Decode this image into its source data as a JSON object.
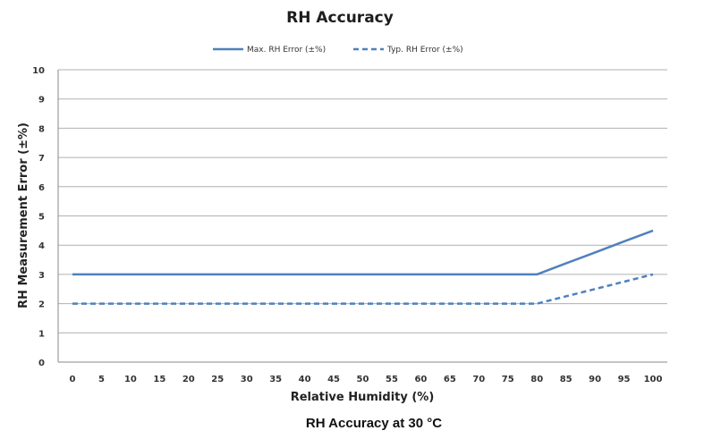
{
  "chart_data": {
    "type": "line",
    "title": "RH Accuracy",
    "xlabel": "Relative Humidity (%)",
    "ylabel": "RH Measurement Error (±%)",
    "caption": "RH Accuracy at 30 °C",
    "x": [
      0,
      5,
      10,
      15,
      20,
      25,
      30,
      35,
      40,
      45,
      50,
      55,
      60,
      65,
      70,
      75,
      80,
      85,
      90,
      95,
      100
    ],
    "xticks": [
      "0",
      "5",
      "10",
      "15",
      "20",
      "25",
      "30",
      "35",
      "40",
      "45",
      "50",
      "55",
      "60",
      "65",
      "70",
      "75",
      "80",
      "85",
      "90",
      "95",
      "100"
    ],
    "yticks": [
      "0",
      "1",
      "2",
      "3",
      "4",
      "5",
      "6",
      "7",
      "8",
      "9",
      "10"
    ],
    "ylim": [
      0,
      10
    ],
    "grid": true,
    "legend_position": "top",
    "series": [
      {
        "name": "Max. RH Error (±%)",
        "style": "solid",
        "color": "#4f81bd",
        "values": [
          3,
          3,
          3,
          3,
          3,
          3,
          3,
          3,
          3,
          3,
          3,
          3,
          3,
          3,
          3,
          3,
          3,
          3.375,
          3.75,
          4.125,
          4.5
        ]
      },
      {
        "name": "Typ. RH Error (±%)",
        "style": "dashed",
        "color": "#4f81bd",
        "values": [
          2,
          2,
          2,
          2,
          2,
          2,
          2,
          2,
          2,
          2,
          2,
          2,
          2,
          2,
          2,
          2,
          2,
          2.25,
          2.5,
          2.75,
          3
        ]
      }
    ]
  }
}
